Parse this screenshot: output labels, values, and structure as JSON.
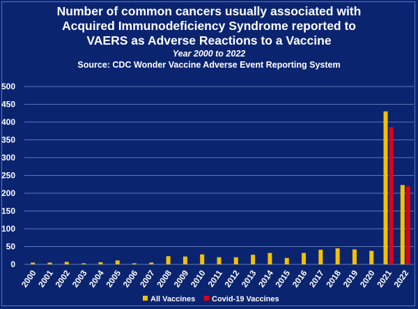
{
  "chart_data": {
    "type": "bar",
    "title": "Number of common cancers usually associated with Acquired Immunodeficiency Syndrome reported to VAERS as Adverse Reactions to a Vaccine",
    "title_lines": [
      "Number of common cancers usually associated with",
      "Acquired Immunodeficiency Syndrome reported to",
      "VAERS as Adverse Reactions to a Vaccine"
    ],
    "subtitle": "Year 2000 to 2022",
    "source": "Source: CDC Wonder Vaccine Adverse Event Reporting System",
    "xlabel": "",
    "ylabel": "",
    "ylim": [
      0,
      500
    ],
    "yticks": [
      0,
      50,
      100,
      150,
      200,
      250,
      300,
      350,
      400,
      450,
      500
    ],
    "grid": true,
    "legend_position": "bottom-center",
    "categories": [
      "2000",
      "2001",
      "2002",
      "2003",
      "2004",
      "2005",
      "2006",
      "2007",
      "2008",
      "2009",
      "2010",
      "2011",
      "2012",
      "2013",
      "2014",
      "2015",
      "2016",
      "2017",
      "2018",
      "2019",
      "2020",
      "2021",
      "2022"
    ],
    "series": [
      {
        "name": "All Vaccines",
        "color": "#f5c000",
        "values": [
          5,
          5,
          7,
          3,
          6,
          11,
          3,
          5,
          23,
          22,
          28,
          20,
          20,
          27,
          32,
          18,
          32,
          41,
          45,
          42,
          38,
          430,
          223
        ]
      },
      {
        "name": "Covid-19 Vaccines",
        "color": "#e0001b",
        "values": [
          null,
          null,
          null,
          null,
          null,
          null,
          null,
          null,
          null,
          null,
          null,
          null,
          null,
          null,
          null,
          null,
          null,
          null,
          null,
          null,
          null,
          386,
          219
        ]
      }
    ]
  },
  "colors": {
    "background": "#0b2470",
    "grid": "#7f93cf",
    "text": "#ffffff"
  }
}
